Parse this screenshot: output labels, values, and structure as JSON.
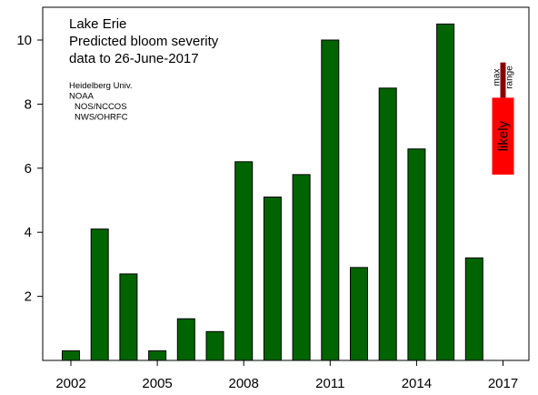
{
  "chart_data": {
    "type": "bar",
    "title_lines": [
      "Lake Erie",
      "Predicted bloom severity",
      "data to 26-June-2017"
    ],
    "credits": [
      "Heidelberg Univ.",
      "NOAA",
      "NOS/NCCOS",
      "NWS/OHRFC"
    ],
    "categories": [
      "2002",
      "2003",
      "2004",
      "2005",
      "2006",
      "2007",
      "2008",
      "2009",
      "2010",
      "2011",
      "2012",
      "2013",
      "2014",
      "2015",
      "2016",
      "2017"
    ],
    "values": [
      0.3,
      4.1,
      2.7,
      0.3,
      1.3,
      0.9,
      6.2,
      5.1,
      5.8,
      10.0,
      2.9,
      8.5,
      6.6,
      10.5,
      3.2,
      null
    ],
    "x_tick_labels": [
      "2002",
      "2005",
      "2008",
      "2011",
      "2014",
      "2017"
    ],
    "y_tick_labels": [
      "2",
      "4",
      "6",
      "8",
      "10"
    ],
    "ylim": [
      0,
      11
    ],
    "bar_color": "#006400",
    "forecast_2017": {
      "likely_range": [
        5.8,
        8.2
      ],
      "likely_label": "likely",
      "likely_color": "#ff0000",
      "max_range": [
        8.2,
        9.3
      ],
      "max_label": [
        "max",
        "range"
      ],
      "max_color": "#8b0000"
    }
  }
}
